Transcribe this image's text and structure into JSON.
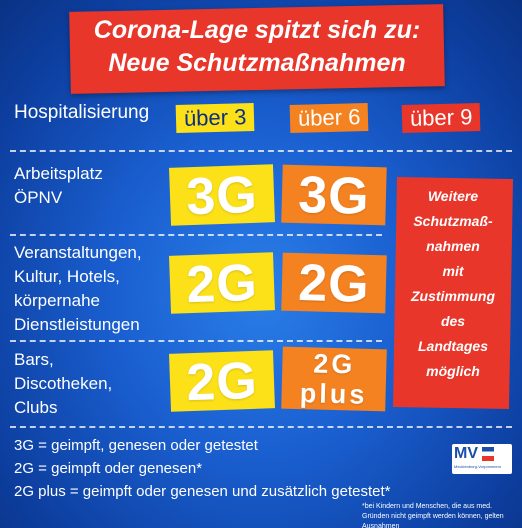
{
  "title": {
    "line1": "Corona-Lage spitzt sich zu:",
    "line2": "Neue Schutzmaßnahmen"
  },
  "header": {
    "label": "Hospitalisierung",
    "thresholds": [
      "über 3",
      "über 6",
      "über 9"
    ]
  },
  "rows": [
    {
      "label": "Arbeitsplatz\nÖPNV",
      "yellow": "3G",
      "orange": "3G"
    },
    {
      "label": "Veranstaltungen,\nKultur, Hotels,\nkörpernahe\nDienstleistungen",
      "yellow": "2G",
      "orange": "2G"
    },
    {
      "label": "Bars,\nDiscotheken,\nClubs",
      "yellow": "2G",
      "orange_line1": "2G",
      "orange_line2": "plus"
    }
  ],
  "red_column": "Weitere\nSchutzmaß-\nnahmen\nmit\nZustimmung\ndes\nLandtages\nmöglich",
  "legend": [
    "3G = geimpft, genesen oder getestet",
    "2G = geimpft oder genesen*",
    "2G plus = geimpft oder genesen und zusätzlich getestet*"
  ],
  "logo": {
    "text": "MV",
    "subtitle": "Mecklenburg-Vorpommern"
  },
  "footnote": "*bei Kindern und Menschen, die aus med. Gründen nicht geimpft werden können, gelten Ausnahmen",
  "colors": {
    "background": "#1a5fd0",
    "red": "#e8362b",
    "orange": "#f58220",
    "yellow": "#fce018"
  }
}
